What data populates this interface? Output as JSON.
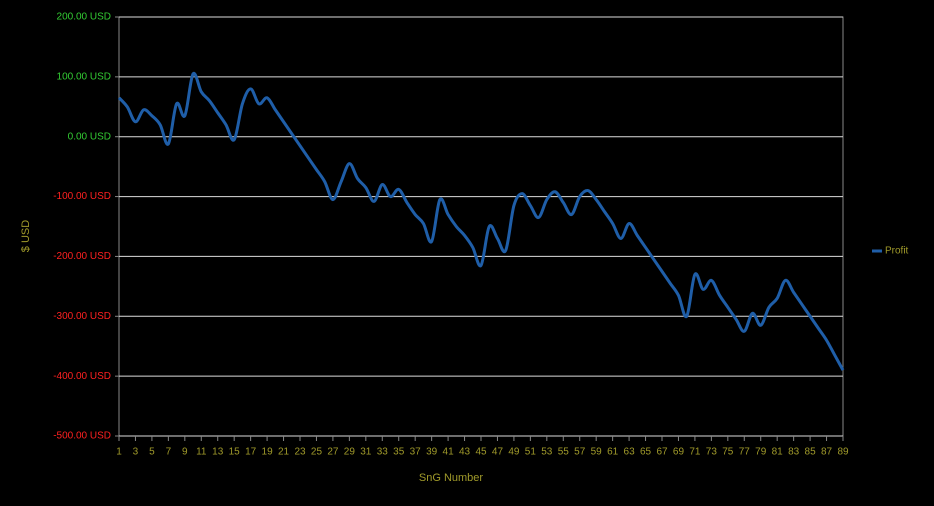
{
  "chart_data": {
    "type": "line",
    "x_label": "SnG Number",
    "y_label": "$ USD",
    "x": [
      1,
      2,
      3,
      4,
      5,
      6,
      7,
      8,
      9,
      10,
      11,
      12,
      13,
      14,
      15,
      16,
      17,
      18,
      19,
      20,
      21,
      22,
      23,
      24,
      25,
      26,
      27,
      28,
      29,
      30,
      31,
      32,
      33,
      34,
      35,
      36,
      37,
      38,
      39,
      40,
      41,
      42,
      43,
      44,
      45,
      46,
      47,
      48,
      49,
      50,
      51,
      52,
      53,
      54,
      55,
      56,
      57,
      58,
      59,
      60,
      61,
      62,
      63,
      64,
      65,
      66,
      67,
      68,
      69,
      70,
      71,
      72,
      73,
      74,
      75,
      76,
      77,
      78,
      79,
      80,
      81,
      82,
      83,
      84,
      85,
      86,
      87,
      88,
      89
    ],
    "series": [
      {
        "name": "Profit",
        "color": "#1f5ea8",
        "values": [
          65,
          50,
          25,
          45,
          35,
          20,
          -12,
          55,
          35,
          105,
          75,
          60,
          40,
          20,
          -5,
          55,
          80,
          55,
          65,
          45,
          25,
          5,
          -15,
          -35,
          -55,
          -75,
          -105,
          -75,
          -45,
          -70,
          -85,
          -108,
          -80,
          -100,
          -88,
          -110,
          -130,
          -145,
          -175,
          -105,
          -130,
          -150,
          -165,
          -185,
          -215,
          -150,
          -170,
          -190,
          -115,
          -95,
          -115,
          -135,
          -105,
          -92,
          -110,
          -130,
          -100,
          -90,
          -105,
          -125,
          -145,
          -170,
          -145,
          -165,
          -185,
          -205,
          -225,
          -245,
          -265,
          -300,
          -230,
          -255,
          -240,
          -265,
          -285,
          -305,
          -325,
          -295,
          -315,
          -285,
          -270,
          -240,
          -260,
          -280,
          -300,
          -320,
          -340,
          -365,
          -390
        ]
      }
    ],
    "xlim": [
      1,
      89
    ],
    "xticks": [
      1,
      3,
      5,
      7,
      9,
      11,
      13,
      15,
      17,
      19,
      21,
      23,
      25,
      27,
      29,
      31,
      33,
      35,
      37,
      39,
      41,
      43,
      45,
      47,
      49,
      51,
      53,
      55,
      57,
      59,
      61,
      63,
      65,
      67,
      69,
      71,
      73,
      75,
      77,
      79,
      81,
      83,
      85,
      87,
      89
    ],
    "ylim": [
      -500,
      200
    ],
    "yticks": [
      {
        "value": -500,
        "label": "-500.00 USD"
      },
      {
        "value": -400,
        "label": "-400.00 USD"
      },
      {
        "value": -300,
        "label": "-300.00 USD"
      },
      {
        "value": -200,
        "label": "-200.00 USD"
      },
      {
        "value": -100,
        "label": "-100.00 USD"
      },
      {
        "value": 0,
        "label": "0.00 USD"
      },
      {
        "value": 100,
        "label": "100.00 USD"
      },
      {
        "value": 200,
        "label": "200.00 USD"
      }
    ],
    "grid": true,
    "legend": "right"
  }
}
